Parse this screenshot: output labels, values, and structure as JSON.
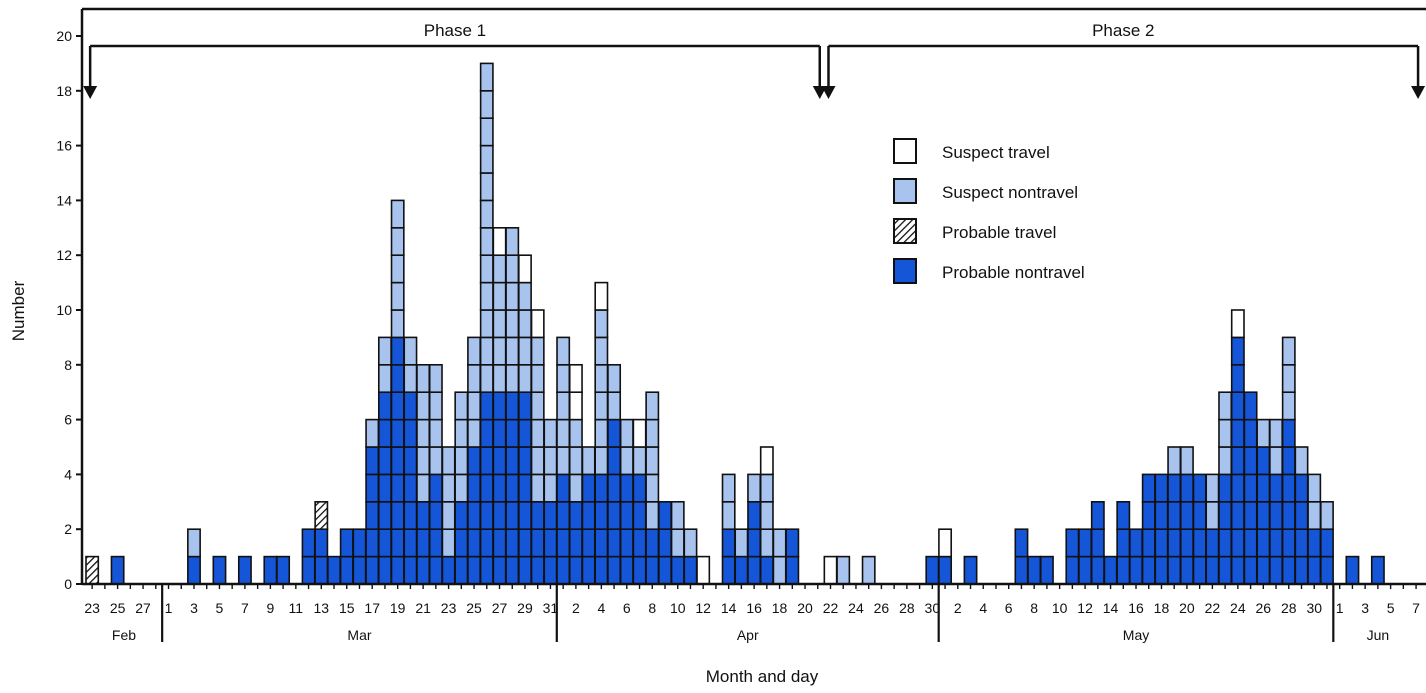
{
  "chart_data": {
    "type": "bar",
    "stacked": true,
    "ylabel": "Number",
    "xlabel": "Month and day",
    "ylim": [
      0,
      20
    ],
    "yticks": [
      "0",
      "2",
      "4",
      "6",
      "8",
      "10",
      "12",
      "14",
      "16",
      "18",
      "20"
    ],
    "phases": [
      {
        "label": "Phase 1",
        "start_index": 0,
        "end_index": 57
      },
      {
        "label": "Phase 2",
        "start_index": 58,
        "end_index": 104
      }
    ],
    "months": [
      {
        "label": "Feb",
        "start_index": 0,
        "end_index": 5
      },
      {
        "label": "Mar",
        "start_index": 6,
        "end_index": 36
      },
      {
        "label": "Apr",
        "start_index": 37,
        "end_index": 66
      },
      {
        "label": "May",
        "start_index": 67,
        "end_index": 97
      },
      {
        "label": "Jun",
        "start_index": 98,
        "end_index": 104
      }
    ],
    "x_tick_labels": [
      {
        "i": 0,
        "label": "23"
      },
      {
        "i": 2,
        "label": "25"
      },
      {
        "i": 4,
        "label": "27"
      },
      {
        "i": 6,
        "label": "1"
      },
      {
        "i": 8,
        "label": "3"
      },
      {
        "i": 10,
        "label": "5"
      },
      {
        "i": 12,
        "label": "7"
      },
      {
        "i": 14,
        "label": "9"
      },
      {
        "i": 16,
        "label": "11"
      },
      {
        "i": 18,
        "label": "13"
      },
      {
        "i": 20,
        "label": "15"
      },
      {
        "i": 22,
        "label": "17"
      },
      {
        "i": 24,
        "label": "19"
      },
      {
        "i": 26,
        "label": "21"
      },
      {
        "i": 28,
        "label": "23"
      },
      {
        "i": 30,
        "label": "25"
      },
      {
        "i": 32,
        "label": "27"
      },
      {
        "i": 34,
        "label": "29"
      },
      {
        "i": 36,
        "label": "31"
      },
      {
        "i": 38,
        "label": "2"
      },
      {
        "i": 40,
        "label": "4"
      },
      {
        "i": 42,
        "label": "6"
      },
      {
        "i": 44,
        "label": "8"
      },
      {
        "i": 46,
        "label": "10"
      },
      {
        "i": 48,
        "label": "12"
      },
      {
        "i": 50,
        "label": "14"
      },
      {
        "i": 52,
        "label": "16"
      },
      {
        "i": 54,
        "label": "18"
      },
      {
        "i": 56,
        "label": "20"
      },
      {
        "i": 58,
        "label": "22"
      },
      {
        "i": 60,
        "label": "24"
      },
      {
        "i": 62,
        "label": "26"
      },
      {
        "i": 64,
        "label": "28"
      },
      {
        "i": 66,
        "label": "30"
      },
      {
        "i": 68,
        "label": "2"
      },
      {
        "i": 70,
        "label": "4"
      },
      {
        "i": 72,
        "label": "6"
      },
      {
        "i": 74,
        "label": "8"
      },
      {
        "i": 76,
        "label": "10"
      },
      {
        "i": 78,
        "label": "12"
      },
      {
        "i": 80,
        "label": "14"
      },
      {
        "i": 82,
        "label": "16"
      },
      {
        "i": 84,
        "label": "18"
      },
      {
        "i": 86,
        "label": "20"
      },
      {
        "i": 88,
        "label": "22"
      },
      {
        "i": 90,
        "label": "24"
      },
      {
        "i": 92,
        "label": "26"
      },
      {
        "i": 94,
        "label": "28"
      },
      {
        "i": 96,
        "label": "30"
      },
      {
        "i": 98,
        "label": "1"
      },
      {
        "i": 100,
        "label": "3"
      },
      {
        "i": 102,
        "label": "5"
      },
      {
        "i": 104,
        "label": "7"
      }
    ],
    "legend": [
      {
        "key": "suspect_travel",
        "label": "Suspect travel",
        "color": "#ffffff"
      },
      {
        "key": "suspect_nontravel",
        "label": "Suspect nontravel",
        "color": "#a8c4ee"
      },
      {
        "key": "probable_travel",
        "label": "Probable travel",
        "color": "hatched"
      },
      {
        "key": "probable_nontravel",
        "label": "Probable nontravel",
        "color": "#1556d8"
      }
    ],
    "series": [
      {
        "name": "Probable nontravel",
        "color": "#1556d8",
        "values": [
          0,
          0,
          1,
          0,
          0,
          0,
          0,
          0,
          1,
          0,
          1,
          0,
          1,
          0,
          1,
          1,
          0,
          2,
          2,
          1,
          2,
          2,
          5,
          7,
          9,
          7,
          3,
          4,
          1,
          3,
          5,
          7,
          7,
          7,
          7,
          3,
          3,
          4,
          3,
          4,
          4,
          6,
          4,
          4,
          2,
          3,
          1,
          1,
          0,
          0,
          2,
          1,
          3,
          1,
          0,
          2,
          0,
          0,
          0,
          0,
          0,
          0,
          0,
          0,
          0,
          0,
          1,
          1,
          0,
          1,
          0,
          0,
          0,
          2,
          1,
          1,
          0,
          2,
          2,
          3,
          1,
          3,
          2,
          4,
          4,
          4,
          4,
          4,
          2,
          4,
          9,
          7,
          5,
          4,
          6,
          4,
          2,
          2,
          0,
          1,
          0,
          1,
          0,
          0,
          0
        ]
      },
      {
        "name": "Probable travel",
        "color": "hatched",
        "values": [
          1,
          0,
          0,
          0,
          0,
          0,
          0,
          0,
          0,
          0,
          0,
          0,
          0,
          0,
          0,
          0,
          0,
          0,
          1,
          0,
          0,
          0,
          0,
          0,
          0,
          0,
          0,
          0,
          0,
          0,
          0,
          0,
          0,
          0,
          0,
          0,
          0,
          0,
          0,
          0,
          0,
          0,
          0,
          0,
          0,
          0,
          0,
          0,
          0,
          0,
          0,
          0,
          0,
          0,
          0,
          0,
          0,
          0,
          0,
          0,
          0,
          0,
          0,
          0,
          0,
          0,
          0,
          0,
          0,
          0,
          0,
          0,
          0,
          0,
          0,
          0,
          0,
          0,
          0,
          0,
          0,
          0,
          0,
          0,
          0,
          0,
          0,
          0,
          0,
          0,
          0,
          0,
          0,
          0,
          0,
          0,
          0,
          0,
          0,
          0,
          0,
          0,
          0,
          0,
          0
        ]
      },
      {
        "name": "Suspect nontravel",
        "color": "#a8c4ee",
        "values": [
          0,
          0,
          0,
          0,
          0,
          0,
          0,
          0,
          1,
          0,
          0,
          0,
          0,
          0,
          0,
          0,
          0,
          0,
          0,
          0,
          0,
          0,
          1,
          2,
          5,
          2,
          5,
          4,
          4,
          4,
          4,
          12,
          5,
          6,
          4,
          6,
          3,
          5,
          3,
          1,
          6,
          2,
          2,
          1,
          5,
          0,
          2,
          1,
          0,
          0,
          2,
          1,
          1,
          3,
          2,
          0,
          0,
          0,
          0,
          1,
          0,
          1,
          0,
          0,
          0,
          0,
          0,
          0,
          0,
          0,
          0,
          0,
          0,
          0,
          0,
          0,
          0,
          0,
          0,
          0,
          0,
          0,
          0,
          0,
          0,
          1,
          1,
          0,
          2,
          3,
          0,
          0,
          1,
          2,
          3,
          1,
          2,
          1,
          0,
          0,
          0,
          0,
          0,
          0,
          0
        ]
      },
      {
        "name": "Suspect travel",
        "color": "#ffffff",
        "values": [
          0,
          0,
          0,
          0,
          0,
          0,
          0,
          0,
          0,
          0,
          0,
          0,
          0,
          0,
          0,
          0,
          0,
          0,
          0,
          0,
          0,
          0,
          0,
          0,
          0,
          0,
          0,
          0,
          0,
          0,
          0,
          0,
          1,
          0,
          1,
          1,
          0,
          0,
          2,
          0,
          1,
          0,
          0,
          1,
          0,
          0,
          0,
          0,
          1,
          0,
          0,
          0,
          0,
          1,
          0,
          0,
          0,
          0,
          1,
          0,
          0,
          0,
          0,
          0,
          0,
          0,
          0,
          1,
          0,
          0,
          0,
          0,
          0,
          0,
          0,
          0,
          0,
          0,
          0,
          0,
          0,
          0,
          0,
          0,
          0,
          0,
          0,
          0,
          0,
          0,
          1,
          0,
          0,
          0,
          0,
          0,
          0,
          0,
          0,
          0,
          0,
          0,
          0,
          0,
          0
        ]
      }
    ]
  }
}
